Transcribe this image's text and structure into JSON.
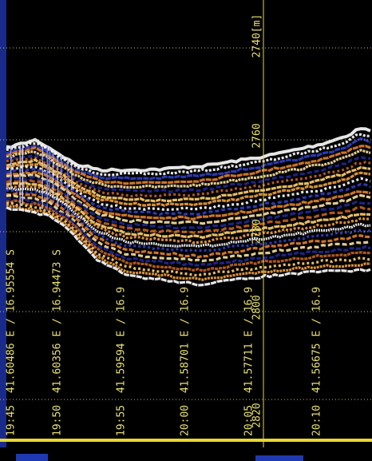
{
  "depth_labels": [
    "2740[m]",
    "2760",
    "2780",
    "2800",
    "2820"
  ],
  "track_labels": [
    {
      "time": "19:45",
      "position": "41.60486 E / 16.95554 S"
    },
    {
      "time": "19:50",
      "position": "41.60356 E / 16.94473 S"
    },
    {
      "time": "19:55",
      "position": "41.59594 E / 16.9"
    },
    {
      "time": "20:00",
      "position": "41.58701 E / 16.9"
    },
    {
      "time": "20:05",
      "position": "41.57711 E / 16.9"
    },
    {
      "time": "20:10",
      "position": "41.56675 E / 16.9"
    }
  ]
}
